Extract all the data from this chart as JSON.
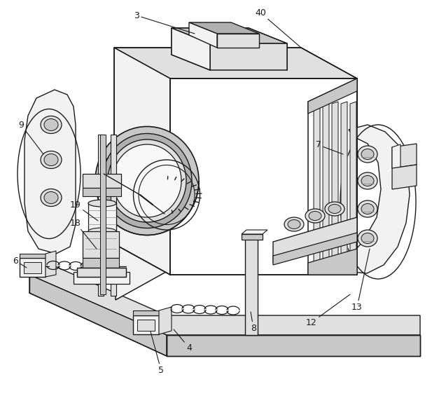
{
  "bg_color": "#ffffff",
  "lc": "#1a1a1a",
  "fill_white": "#ffffff",
  "fill_light": "#f2f2f2",
  "fill_mid": "#e0e0e0",
  "fill_dark": "#c8c8c8",
  "fill_darker": "#b0b0b0",
  "mg": "#888888"
}
